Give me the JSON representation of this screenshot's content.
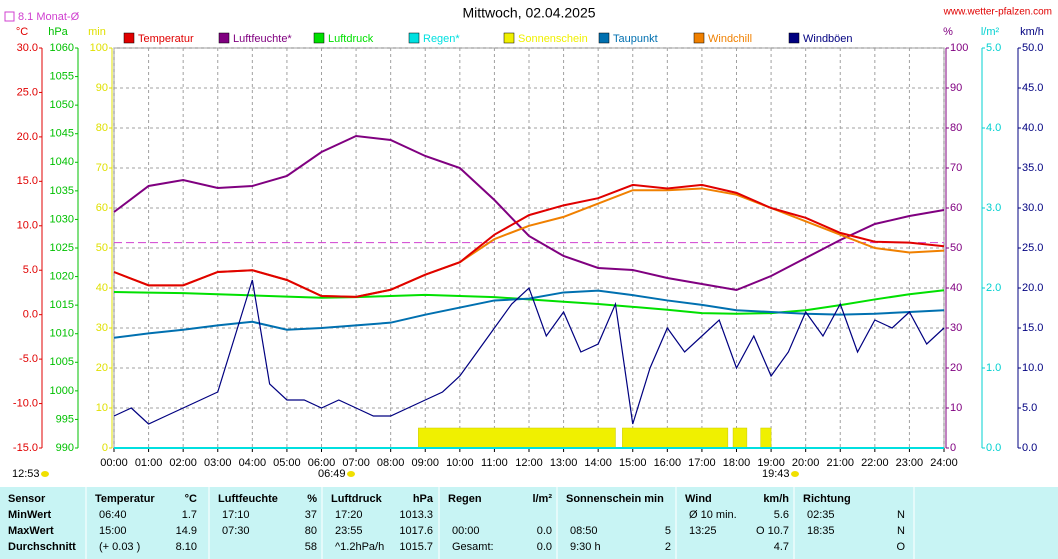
{
  "chart_data": {
    "type": "line",
    "title": "Mittwoch, 02.04.2025",
    "site": "www.wetter-pfalzen.com",
    "reference": {
      "label": "8.1 Monat-Ø",
      "value": 8.1,
      "axis": 0,
      "color": "#d040d0"
    },
    "sun_times": [
      "12:53",
      "06:49",
      "19:43"
    ],
    "xlim": [
      0,
      24
    ],
    "xticks": [
      {
        "value": 0,
        "label": "00:00"
      },
      {
        "value": 1,
        "label": "01:00"
      },
      {
        "value": 2,
        "label": "02:00"
      },
      {
        "value": 3,
        "label": "03:00"
      },
      {
        "value": 4,
        "label": "04:00"
      },
      {
        "value": 5,
        "label": "05:00"
      },
      {
        "value": 6,
        "label": "06:00"
      },
      {
        "value": 7,
        "label": "07:00"
      },
      {
        "value": 8,
        "label": "08:00"
      },
      {
        "value": 9,
        "label": "09:00"
      },
      {
        "value": 10,
        "label": "10:00"
      },
      {
        "value": 11,
        "label": "11:00"
      },
      {
        "value": 12,
        "label": "12:00"
      },
      {
        "value": 13,
        "label": "13:00"
      },
      {
        "value": 14,
        "label": "14:00"
      },
      {
        "value": 15,
        "label": "15:00"
      },
      {
        "value": 16,
        "label": "16:00"
      },
      {
        "value": 17,
        "label": "17:00"
      },
      {
        "value": 18,
        "label": "18:00"
      },
      {
        "value": 19,
        "label": "19:00"
      },
      {
        "value": 20,
        "label": "20:00"
      },
      {
        "value": 21,
        "label": "21:00"
      },
      {
        "value": 22,
        "label": "22:00"
      },
      {
        "value": 23,
        "label": "23:00"
      },
      {
        "value": 24,
        "label": "24:00"
      }
    ],
    "grid": true,
    "axes": [
      {
        "unit": "°C",
        "color": "#e00000",
        "side": "left",
        "lim": [
          -15,
          30
        ],
        "ticks": [
          {
            "value": 30,
            "label": "30.0"
          },
          {
            "value": 25,
            "label": "25.0"
          },
          {
            "value": 20,
            "label": "20.0"
          },
          {
            "value": 15,
            "label": "15.0"
          },
          {
            "value": 10,
            "label": "10.0"
          },
          {
            "value": 5,
            "label": "5.0"
          },
          {
            "value": 0,
            "label": "0.0"
          },
          {
            "value": -5,
            "label": "-5.0"
          },
          {
            "value": -10,
            "label": "-10.0"
          },
          {
            "value": -15,
            "label": "-15.0"
          }
        ]
      },
      {
        "unit": "hPa",
        "color": "#00c000",
        "side": "left",
        "lim": [
          990,
          1060
        ],
        "ticks": [
          1060,
          1055,
          1050,
          1045,
          1040,
          1035,
          1030,
          1025,
          1020,
          1015,
          1010,
          1005,
          1000,
          995,
          990
        ]
      },
      {
        "unit": "min",
        "color": "#e0e000",
        "side": "left",
        "lim": [
          0,
          100
        ],
        "ticks": [
          100,
          90,
          80,
          70,
          60,
          50,
          40,
          30,
          20,
          10,
          0
        ]
      },
      {
        "unit": "%",
        "color": "#800080",
        "side": "right",
        "lim": [
          0,
          100
        ],
        "ticks": [
          100,
          90,
          80,
          70,
          60,
          50,
          40,
          30,
          20,
          10,
          0
        ]
      },
      {
        "unit": "l/m²",
        "color": "#00d0d0",
        "side": "right",
        "lim": [
          0,
          5
        ],
        "ticks": [
          {
            "value": 5,
            "label": "5.0"
          },
          {
            "value": 4,
            "label": "4.0"
          },
          {
            "value": 3,
            "label": "3.0"
          },
          {
            "value": 2,
            "label": "2.0"
          },
          {
            "value": 1,
            "label": "1.0"
          },
          {
            "value": 0,
            "label": "0.0"
          }
        ]
      },
      {
        "unit": "km/h",
        "color": "#000080",
        "side": "right",
        "lim": [
          0,
          50
        ],
        "ticks": [
          {
            "value": 50,
            "label": "50.0"
          },
          {
            "value": 45,
            "label": "45.0"
          },
          {
            "value": 40,
            "label": "40.0"
          },
          {
            "value": 35,
            "label": "35.0"
          },
          {
            "value": 30,
            "label": "30.0"
          },
          {
            "value": 25,
            "label": "25.0"
          },
          {
            "value": 20,
            "label": "20.0"
          },
          {
            "value": 15,
            "label": "15.0"
          },
          {
            "value": 10,
            "label": "10.0"
          },
          {
            "value": 5,
            "label": "5.0"
          },
          {
            "value": 0,
            "label": "0.0"
          }
        ]
      }
    ],
    "series": [
      {
        "name": "Temperatur",
        "color": "#e00000",
        "axis": 0,
        "x": [
          0,
          1,
          2,
          3,
          4,
          5,
          6,
          7,
          8,
          9,
          10,
          11,
          12,
          13,
          14,
          15,
          16,
          17,
          18,
          19,
          20,
          21,
          22,
          23,
          24
        ],
        "values": [
          4.8,
          3.3,
          3.3,
          4.8,
          5.0,
          3.9,
          2.1,
          2.0,
          2.8,
          4.5,
          5.9,
          9.0,
          11.2,
          12.3,
          13.1,
          14.6,
          14.2,
          14.6,
          13.7,
          12.0,
          10.9,
          9.2,
          8.2,
          8.1,
          7.7
        ]
      },
      {
        "name": "Luftfeuchte*",
        "color": "#800080",
        "axis": 3,
        "x": [
          0,
          1,
          2,
          3,
          4,
          5,
          6,
          7,
          8,
          9,
          10,
          11,
          12,
          13,
          14,
          15,
          16,
          17,
          18,
          19,
          20,
          21,
          22,
          23,
          24
        ],
        "values": [
          59,
          65.5,
          67,
          65,
          65.5,
          68,
          74,
          78,
          77,
          73,
          70,
          62,
          53,
          48,
          45,
          44.5,
          42.5,
          41,
          39.5,
          43,
          47.5,
          52,
          56,
          58,
          59.5
        ]
      },
      {
        "name": "Luftdruck",
        "color": "#00e000",
        "axis": 1,
        "x": [
          0,
          1,
          2,
          3,
          4,
          5,
          6,
          7,
          8,
          9,
          10,
          11,
          12,
          13,
          14,
          15,
          16,
          17,
          18,
          19,
          20,
          21,
          22,
          23,
          24
        ],
        "values": [
          1017.3,
          1017.2,
          1017.1,
          1016.9,
          1016.7,
          1016.5,
          1016.3,
          1016.4,
          1016.6,
          1016.8,
          1016.6,
          1016.4,
          1016.0,
          1015.6,
          1015.2,
          1014.7,
          1014.2,
          1013.6,
          1013.5,
          1013.6,
          1014.1,
          1015.0,
          1016.0,
          1016.9,
          1017.6
        ]
      },
      {
        "name": "Regen*",
        "color": "#00e0e0",
        "axis": 4,
        "x": [
          0,
          24
        ],
        "values": [
          0,
          0
        ]
      },
      {
        "name": "Sonnenschein",
        "color": "#f0f000",
        "axis": 2,
        "type": "bar",
        "periods": [
          [
            8.8,
            14.5
          ],
          [
            14.7,
            17.75
          ],
          [
            17.9,
            18.3
          ],
          [
            18.7,
            19.0
          ]
        ],
        "values": [
          5,
          5,
          5,
          5
        ]
      },
      {
        "name": "Taupunkt",
        "color": "#0070b0",
        "axis": 0,
        "x": [
          0,
          1,
          2,
          3,
          4,
          5,
          6,
          7,
          8,
          9,
          10,
          11,
          12,
          13,
          14,
          15,
          16,
          17,
          18,
          19,
          20,
          21,
          22,
          23,
          24
        ],
        "values": [
          -2.6,
          -2.1,
          -1.7,
          -1.2,
          -0.8,
          -1.7,
          -1.5,
          -1.2,
          -0.9,
          0.0,
          0.8,
          1.6,
          1.8,
          2.5,
          2.7,
          2.2,
          1.6,
          1.1,
          0.5,
          0.3,
          0.1,
          0.0,
          0.1,
          0.3,
          0.5
        ]
      },
      {
        "name": "Windchill",
        "color": "#f08000",
        "axis": 0,
        "x": [
          0,
          1,
          2,
          3,
          4,
          5,
          6,
          7,
          8,
          9,
          10,
          11,
          12,
          13,
          14,
          15,
          16,
          17,
          18,
          19,
          20,
          21,
          22,
          23,
          24
        ],
        "values": [
          4.8,
          3.3,
          3.3,
          4.8,
          5.0,
          3.9,
          2.1,
          2.0,
          2.8,
          4.5,
          5.9,
          8.5,
          10.0,
          11.0,
          12.5,
          14.0,
          14.0,
          14.2,
          13.5,
          12.0,
          10.5,
          9.0,
          7.5,
          7.0,
          7.2
        ]
      },
      {
        "name": "Windböen",
        "color": "#000080",
        "axis": 5,
        "x": [
          0,
          0.5,
          1,
          1.5,
          2,
          2.5,
          3,
          3.5,
          4,
          4.5,
          5,
          5.5,
          6,
          6.5,
          7,
          7.5,
          8,
          8.5,
          9,
          9.5,
          10,
          10.5,
          11,
          11.5,
          12,
          12.5,
          13,
          13.5,
          14,
          14.5,
          15,
          15.5,
          16,
          16.5,
          17,
          17.5,
          18,
          18.5,
          19,
          19.5,
          20,
          20.5,
          21,
          21.5,
          22,
          22.5,
          23,
          23.5,
          24
        ],
        "values": [
          4,
          5,
          3,
          4,
          5,
          6,
          7,
          14,
          21,
          8,
          6,
          6,
          5,
          6,
          5,
          4,
          4,
          5,
          6,
          7,
          9,
          12,
          15,
          18,
          20,
          14,
          17,
          12,
          13,
          18,
          3,
          10,
          15,
          12,
          14,
          16,
          10,
          14,
          9,
          12,
          17,
          14,
          18,
          12,
          16,
          15,
          17,
          13,
          15
        ]
      }
    ]
  },
  "table": {
    "header": [
      [
        "Sensor",
        null
      ],
      [
        "Temperatur",
        "°C"
      ],
      [
        "Luftfeuchte",
        "%"
      ],
      [
        "Luftdruck",
        "hPa"
      ],
      [
        "Regen",
        "l/m²"
      ],
      [
        "Sonnenschein min",
        null
      ],
      [
        "Wind",
        "km/h"
      ],
      [
        "Richtung",
        null
      ]
    ],
    "rows": [
      {
        "label": "MinWert",
        "cells": [
          [
            "06:40",
            "1.7"
          ],
          [
            "17:10",
            "37"
          ],
          [
            "17:20",
            "1013.3"
          ],
          [
            null,
            null
          ],
          [
            null,
            null
          ],
          [
            "Ø 10 min.",
            "5.6"
          ],
          [
            "02:35",
            "N"
          ]
        ]
      },
      {
        "label": "MaxWert",
        "cells": [
          [
            "15:00",
            "14.9"
          ],
          [
            "07:30",
            "80"
          ],
          [
            "23:55",
            "1017.6"
          ],
          [
            "00:00",
            "0.0"
          ],
          [
            "08:50",
            "5"
          ],
          [
            "13:25",
            "O 10.7"
          ],
          [
            "18:35",
            "N"
          ]
        ]
      },
      {
        "label": "Durchschnitt",
        "cells": [
          [
            "(+ 0.03 )",
            "8.10"
          ],
          [
            null,
            "58"
          ],
          [
            "^1.2hPa/h",
            "1015.7"
          ],
          [
            "Gesamt:",
            "0.0"
          ],
          [
            "9:30 h",
            "2"
          ],
          [
            null,
            "4.7"
          ],
          [
            null,
            "O"
          ]
        ]
      }
    ]
  }
}
